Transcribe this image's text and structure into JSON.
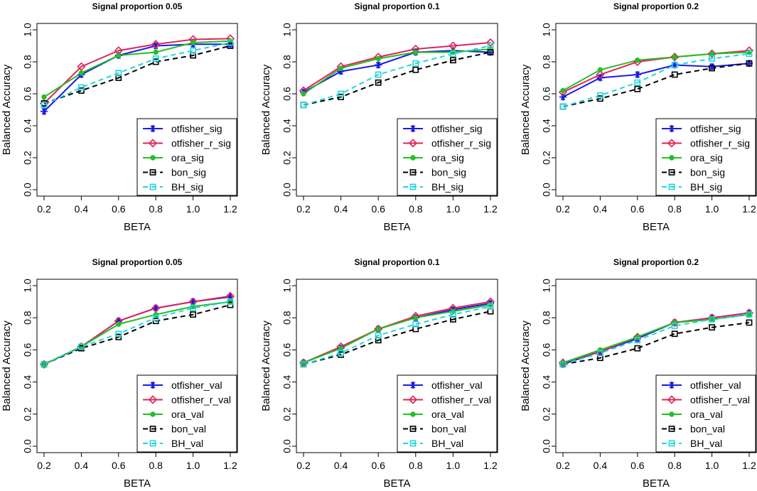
{
  "colors": {
    "otfisher": "#1a1ae6",
    "otfisher_r": "#e0245a",
    "ora": "#22c022",
    "bon": "#000000",
    "BH": "#1fd6df"
  },
  "chart_data": [
    {
      "type": "line",
      "title": "Signal proportion 0.05",
      "xlabel": "BETA",
      "ylabel": "Balanced Accuracy",
      "x": [
        0.2,
        0.4,
        0.6,
        0.8,
        1.0,
        1.2
      ],
      "x_ticks": [
        "0.2",
        "0.4",
        "0.6",
        "0.8",
        "1.0",
        "1.2"
      ],
      "y_ticks": [
        "0.0",
        "0.2",
        "0.4",
        "0.6",
        "0.8",
        "1.0"
      ],
      "xlim": [
        0.2,
        1.2
      ],
      "ylim": [
        0.0,
        1.0
      ],
      "legend": "bottom-right",
      "series": [
        {
          "name": "otfisher_sig",
          "key": "otfisher",
          "dash": "solid",
          "marker": "star",
          "values": [
            0.49,
            0.72,
            0.84,
            0.9,
            0.91,
            0.91
          ]
        },
        {
          "name": "otfisher_r_sig",
          "key": "otfisher_r",
          "dash": "solid",
          "marker": "diamond",
          "values": [
            0.54,
            0.77,
            0.87,
            0.91,
            0.94,
            0.945
          ]
        },
        {
          "name": "ora_sig",
          "key": "ora",
          "dash": "solid",
          "marker": "dot",
          "values": [
            0.58,
            0.73,
            0.84,
            0.86,
            0.92,
            0.93
          ]
        },
        {
          "name": "bon_sig",
          "key": "bon",
          "dash": "dashed",
          "marker": "square",
          "values": [
            0.54,
            0.62,
            0.7,
            0.8,
            0.84,
            0.9
          ]
        },
        {
          "name": "BH_sig",
          "key": "BH",
          "dash": "dashed",
          "marker": "square",
          "values": [
            0.53,
            0.64,
            0.73,
            0.82,
            0.87,
            0.92
          ]
        }
      ]
    },
    {
      "type": "line",
      "title": "Signal proportion 0.1",
      "xlabel": "BETA",
      "ylabel": "Balanced Accuracy",
      "x": [
        0.2,
        0.4,
        0.6,
        0.8,
        1.0,
        1.2
      ],
      "x_ticks": [
        "0.2",
        "0.4",
        "0.6",
        "0.8",
        "1.0",
        "1.2"
      ],
      "y_ticks": [
        "0.0",
        "0.2",
        "0.4",
        "0.6",
        "0.8",
        "1.0"
      ],
      "xlim": [
        0.2,
        1.2
      ],
      "ylim": [
        0.0,
        1.0
      ],
      "legend": "bottom-right",
      "series": [
        {
          "name": "otfisher_sig",
          "key": "otfisher",
          "dash": "solid",
          "marker": "star",
          "values": [
            0.61,
            0.74,
            0.78,
            0.86,
            0.87,
            0.86
          ]
        },
        {
          "name": "otfisher_r_sig",
          "key": "otfisher_r",
          "dash": "solid",
          "marker": "diamond",
          "values": [
            0.62,
            0.77,
            0.83,
            0.88,
            0.9,
            0.92
          ]
        },
        {
          "name": "ora_sig",
          "key": "ora",
          "dash": "solid",
          "marker": "dot",
          "values": [
            0.6,
            0.76,
            0.82,
            0.86,
            0.86,
            0.88
          ]
        },
        {
          "name": "bon_sig",
          "key": "bon",
          "dash": "dashed",
          "marker": "square",
          "values": [
            0.53,
            0.58,
            0.67,
            0.75,
            0.81,
            0.86
          ]
        },
        {
          "name": "BH_sig",
          "key": "BH",
          "dash": "dashed",
          "marker": "square",
          "values": [
            0.53,
            0.6,
            0.72,
            0.79,
            0.85,
            0.9
          ]
        }
      ]
    },
    {
      "type": "line",
      "title": "Signal proportion 0.2",
      "xlabel": "BETA",
      "ylabel": "Balanced Accuracy",
      "x": [
        0.2,
        0.4,
        0.6,
        0.8,
        1.0,
        1.2
      ],
      "x_ticks": [
        "0.2",
        "0.4",
        "0.6",
        "0.8",
        "1.0",
        "1.2"
      ],
      "y_ticks": [
        "0.0",
        "0.2",
        "0.4",
        "0.6",
        "0.8",
        "1.0"
      ],
      "xlim": [
        0.2,
        1.2
      ],
      "ylim": [
        0.0,
        1.0
      ],
      "legend": "bottom-right",
      "series": [
        {
          "name": "otfisher_sig",
          "key": "otfisher",
          "dash": "solid",
          "marker": "star",
          "values": [
            0.58,
            0.7,
            0.72,
            0.78,
            0.77,
            0.79
          ]
        },
        {
          "name": "otfisher_r_sig",
          "key": "otfisher_r",
          "dash": "solid",
          "marker": "diamond",
          "values": [
            0.61,
            0.72,
            0.8,
            0.83,
            0.85,
            0.87
          ]
        },
        {
          "name": "ora_sig",
          "key": "ora",
          "dash": "solid",
          "marker": "dot",
          "values": [
            0.62,
            0.75,
            0.81,
            0.83,
            0.85,
            0.86
          ]
        },
        {
          "name": "bon_sig",
          "key": "bon",
          "dash": "dashed",
          "marker": "square",
          "values": [
            0.52,
            0.57,
            0.63,
            0.72,
            0.76,
            0.79
          ]
        },
        {
          "name": "BH_sig",
          "key": "BH",
          "dash": "dashed",
          "marker": "square",
          "values": [
            0.52,
            0.59,
            0.67,
            0.78,
            0.82,
            0.85
          ]
        }
      ]
    },
    {
      "type": "line",
      "title": "Signal proportion 0.05",
      "xlabel": "BETA",
      "ylabel": "Balanced Accuracy",
      "x": [
        0.2,
        0.4,
        0.6,
        0.8,
        1.0,
        1.2
      ],
      "x_ticks": [
        "0.2",
        "0.4",
        "0.6",
        "0.8",
        "1.0",
        "1.2"
      ],
      "y_ticks": [
        "0.0",
        "0.2",
        "0.4",
        "0.6",
        "0.8",
        "1.0"
      ],
      "xlim": [
        0.2,
        1.2
      ],
      "ylim": [
        0.0,
        1.0
      ],
      "legend": "bottom-right",
      "series": [
        {
          "name": "otfisher_val",
          "key": "otfisher",
          "dash": "solid",
          "marker": "star",
          "values": [
            0.51,
            0.62,
            0.78,
            0.86,
            0.9,
            0.93
          ]
        },
        {
          "name": "otfisher_r_val",
          "key": "otfisher_r",
          "dash": "solid",
          "marker": "diamond",
          "values": [
            0.51,
            0.62,
            0.78,
            0.86,
            0.9,
            0.935
          ]
        },
        {
          "name": "ora_val",
          "key": "ora",
          "dash": "solid",
          "marker": "dot",
          "values": [
            0.51,
            0.62,
            0.76,
            0.82,
            0.87,
            0.9
          ]
        },
        {
          "name": "bon_val",
          "key": "bon",
          "dash": "dashed",
          "marker": "square",
          "values": [
            0.51,
            0.61,
            0.68,
            0.78,
            0.82,
            0.88
          ]
        },
        {
          "name": "BH_val",
          "key": "BH",
          "dash": "dashed",
          "marker": "square",
          "values": [
            0.51,
            0.62,
            0.7,
            0.8,
            0.86,
            0.9
          ]
        }
      ]
    },
    {
      "type": "line",
      "title": "Signal proportion 0.1",
      "xlabel": "BETA",
      "ylabel": "Balanced Accuracy",
      "x": [
        0.2,
        0.4,
        0.6,
        0.8,
        1.0,
        1.2
      ],
      "x_ticks": [
        "0.2",
        "0.4",
        "0.6",
        "0.8",
        "1.0",
        "1.2"
      ],
      "y_ticks": [
        "0.0",
        "0.2",
        "0.4",
        "0.6",
        "0.8",
        "1.0"
      ],
      "xlim": [
        0.2,
        1.2
      ],
      "ylim": [
        0.0,
        1.0
      ],
      "legend": "bottom-right",
      "series": [
        {
          "name": "otfisher_val",
          "key": "otfisher",
          "dash": "solid",
          "marker": "star",
          "values": [
            0.52,
            0.61,
            0.73,
            0.8,
            0.85,
            0.89
          ]
        },
        {
          "name": "otfisher_r_val",
          "key": "otfisher_r",
          "dash": "solid",
          "marker": "diamond",
          "values": [
            0.52,
            0.62,
            0.73,
            0.81,
            0.86,
            0.9
          ]
        },
        {
          "name": "ora_val",
          "key": "ora",
          "dash": "solid",
          "marker": "dot",
          "values": [
            0.52,
            0.61,
            0.73,
            0.8,
            0.84,
            0.88
          ]
        },
        {
          "name": "bon_val",
          "key": "bon",
          "dash": "dashed",
          "marker": "square",
          "values": [
            0.51,
            0.57,
            0.66,
            0.73,
            0.79,
            0.84
          ]
        },
        {
          "name": "BH_val",
          "key": "BH",
          "dash": "dashed",
          "marker": "square",
          "values": [
            0.51,
            0.58,
            0.69,
            0.76,
            0.82,
            0.87
          ]
        }
      ]
    },
    {
      "type": "line",
      "title": "Signal proportion 0.2",
      "xlabel": "BETA",
      "ylabel": "Balanced Accuracy",
      "x": [
        0.2,
        0.4,
        0.6,
        0.8,
        1.0,
        1.2
      ],
      "x_ticks": [
        "0.2",
        "0.4",
        "0.6",
        "0.8",
        "1.0",
        "1.2"
      ],
      "y_ticks": [
        "0.0",
        "0.2",
        "0.4",
        "0.6",
        "0.8",
        "1.0"
      ],
      "xlim": [
        0.2,
        1.2
      ],
      "ylim": [
        0.0,
        1.0
      ],
      "legend": "bottom-right",
      "series": [
        {
          "name": "otfisher_val",
          "key": "otfisher",
          "dash": "solid",
          "marker": "star",
          "values": [
            0.51,
            0.59,
            0.67,
            0.77,
            0.8,
            0.83
          ]
        },
        {
          "name": "otfisher_r_val",
          "key": "otfisher_r",
          "dash": "solid",
          "marker": "diamond",
          "values": [
            0.52,
            0.59,
            0.68,
            0.77,
            0.8,
            0.83
          ]
        },
        {
          "name": "ora_val",
          "key": "ora",
          "dash": "solid",
          "marker": "dot",
          "values": [
            0.52,
            0.6,
            0.68,
            0.77,
            0.79,
            0.82
          ]
        },
        {
          "name": "bon_val",
          "key": "bon",
          "dash": "dashed",
          "marker": "square",
          "values": [
            0.51,
            0.55,
            0.61,
            0.7,
            0.74,
            0.77
          ]
        },
        {
          "name": "BH_val",
          "key": "BH",
          "dash": "dashed",
          "marker": "square",
          "values": [
            0.51,
            0.58,
            0.66,
            0.75,
            0.79,
            0.82
          ]
        }
      ]
    }
  ]
}
